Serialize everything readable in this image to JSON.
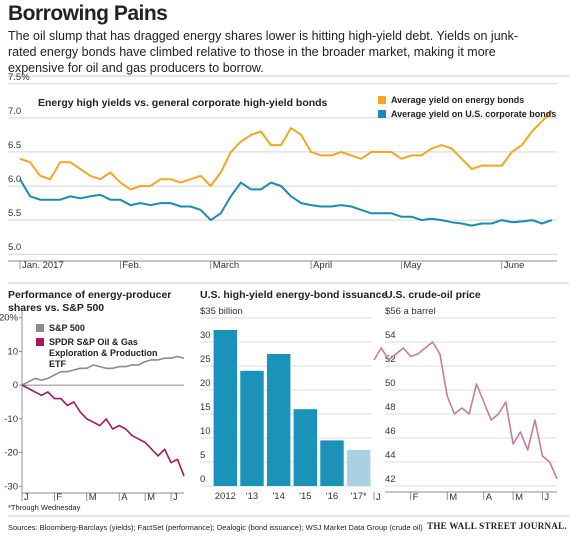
{
  "title": "Borrowing Pains",
  "description": "The oil slump that has dragged energy shares lower is hitting high-yield debt. Yields on junk-rated energy bonds have climbed relative to those in the broader market, making it more expensive for oil and gas producers to borrow.",
  "footnote": "*Through Wednesday",
  "source": "Sources: Bloomberg-Barclays (yields); FactSet (performance); Dealogic (bond issuance); WSJ Market Data Group (crude oil)",
  "publisher": "THE WALL STREET JOURNAL.",
  "chart_data": [
    {
      "type": "line",
      "title": "Energy high yields vs. general corporate high-yield bonds",
      "categories": [
        "Jan. 2017",
        null,
        null,
        null,
        null,
        null,
        null,
        null,
        null,
        null,
        "Feb.",
        null,
        null,
        null,
        null,
        null,
        null,
        null,
        null,
        "March",
        null,
        null,
        null,
        null,
        null,
        null,
        null,
        null,
        null,
        "April",
        null,
        null,
        null,
        null,
        null,
        null,
        null,
        null,
        "May",
        null,
        null,
        null,
        null,
        null,
        null,
        null,
        null,
        null,
        "June",
        null,
        null,
        null,
        null,
        null
      ],
      "series": [
        {
          "name": "Average yield on energy bonds",
          "color": "#f5a623",
          "values": [
            6.4,
            6.35,
            6.15,
            6.1,
            6.35,
            6.35,
            6.25,
            6.15,
            6.1,
            6.2,
            6.05,
            5.95,
            6.0,
            6.0,
            6.1,
            6.1,
            6.05,
            6.1,
            6.15,
            6.0,
            6.2,
            6.5,
            6.65,
            6.75,
            6.8,
            6.6,
            6.6,
            6.85,
            6.75,
            6.5,
            6.45,
            6.45,
            6.5,
            6.45,
            6.4,
            6.5,
            6.5,
            6.5,
            6.4,
            6.45,
            6.45,
            6.55,
            6.6,
            6.55,
            6.4,
            6.25,
            6.3,
            6.3,
            6.3,
            6.5,
            6.6,
            6.8,
            6.95,
            7.1
          ]
        },
        {
          "name": "Average yield on U.S. corporate bonds",
          "color": "#1a8cb0",
          "values": [
            6.1,
            5.85,
            5.8,
            5.8,
            5.8,
            5.85,
            5.82,
            5.85,
            5.87,
            5.8,
            5.8,
            5.72,
            5.75,
            5.72,
            5.75,
            5.75,
            5.7,
            5.7,
            5.65,
            5.5,
            5.6,
            5.85,
            6.05,
            5.95,
            5.95,
            6.05,
            6.0,
            5.85,
            5.75,
            5.72,
            5.7,
            5.7,
            5.72,
            5.7,
            5.65,
            5.6,
            5.6,
            5.6,
            5.55,
            5.55,
            5.5,
            5.52,
            5.5,
            5.47,
            5.45,
            5.42,
            5.45,
            5.45,
            5.5,
            5.47,
            5.48,
            5.5,
            5.45,
            5.5
          ]
        }
      ],
      "ylim": [
        4.9,
        7.6
      ],
      "yticks": [
        {
          "value": 5,
          "label": "5.0"
        },
        5.5,
        {
          "value": 6,
          "label": "6.0"
        },
        6.5,
        {
          "value": 7,
          "label": "7.0"
        },
        {
          "value": 7.5,
          "label": "7.5%"
        }
      ],
      "grid": true,
      "legend": "upper right"
    },
    {
      "type": "line",
      "title": "Performance of energy-producer shares vs. S&P 500",
      "categories": [
        "J",
        null,
        null,
        null,
        null,
        "F",
        null,
        null,
        null,
        null,
        "M",
        null,
        null,
        null,
        null,
        "A",
        null,
        null,
        null,
        "M",
        null,
        null,
        null,
        "J",
        null,
        null
      ],
      "series": [
        {
          "name": "S&P 500",
          "color": "#8c8c8c",
          "values": [
            0,
            1,
            2,
            1.5,
            2,
            3,
            4,
            4,
            4.5,
            5,
            5,
            6,
            5.5,
            5,
            5,
            5.5,
            5.5,
            6,
            6,
            7,
            7.5,
            7.5,
            8,
            8,
            8.5,
            8
          ]
        },
        {
          "name": "SPDR S&P Oil & Gas Exploration & Production ETF",
          "color": "#a3195b",
          "values": [
            0,
            -1,
            -2,
            -3,
            -2,
            -4,
            -4,
            -6,
            -5,
            -8,
            -10,
            -11,
            -12,
            -10,
            -13,
            -12,
            -13,
            -15,
            -16,
            -17,
            -19,
            -21,
            -19,
            -23,
            -22,
            -27
          ]
        }
      ],
      "ylim": [
        -32,
        22
      ],
      "yticks": [
        {
          "value": 20,
          "label": "20%"
        },
        10,
        0,
        -10,
        -20,
        -30
      ],
      "grid": false,
      "legend": "upper left"
    },
    {
      "type": "bar",
      "title": "U.S. high-yield energy-bond issuance",
      "categories": [
        "2012",
        "'13",
        "'14",
        "'15",
        "'16",
        "'17*"
      ],
      "values": [
        32.5,
        24,
        27.5,
        16,
        9.5,
        7.5
      ],
      "colors": [
        "#1b93b8",
        "#1b93b8",
        "#1b93b8",
        "#1b93b8",
        "#1b93b8",
        "#a8d2e3"
      ],
      "ylim": [
        0,
        35
      ],
      "yticks": [
        0,
        5,
        10,
        15,
        20,
        25,
        30,
        {
          "value": 35,
          "label": "$35 billion"
        }
      ],
      "grid": true
    },
    {
      "type": "line",
      "title": "U.S. crude-oil price",
      "categories": [
        "J",
        null,
        null,
        null,
        null,
        "F",
        null,
        null,
        null,
        null,
        "M",
        null,
        null,
        null,
        null,
        "A",
        null,
        null,
        null,
        "M",
        null,
        null,
        null,
        "J",
        null,
        null
      ],
      "series": [
        {
          "name": "Crude-oil price",
          "color": "#c97a9f",
          "values": [
            52.5,
            53.5,
            52.5,
            53,
            53.5,
            52.8,
            53,
            53.5,
            54,
            53,
            49.5,
            48,
            48.5,
            48,
            50.5,
            49,
            47.5,
            48,
            49,
            45.5,
            46.5,
            45,
            47.5,
            44.5,
            44,
            42.6
          ]
        }
      ],
      "ylim": [
        41.5,
        56.5
      ],
      "yticks": [
        42,
        44,
        46,
        48,
        50,
        52,
        54,
        {
          "value": 56,
          "label": "$56 a barrel"
        }
      ],
      "grid": true
    }
  ]
}
